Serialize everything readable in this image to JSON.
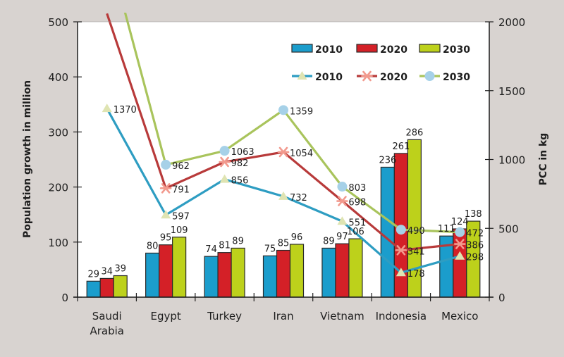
{
  "chart_data": {
    "type": "bar+line",
    "title": "",
    "categories": [
      "Saudi Arabia",
      "Egypt",
      "Turkey",
      "Iran",
      "Vietnam",
      "Indonesia",
      "Mexico"
    ],
    "category_lines": [
      [
        "Saudi",
        "Arabia"
      ],
      [
        "Egypt"
      ],
      [
        "Turkey"
      ],
      [
        "Iran"
      ],
      [
        "Vietnam"
      ],
      [
        "Indonesia"
      ],
      [
        "Mexico"
      ]
    ],
    "ylabel_left": "Population growth in million",
    "ylabel_right": "PCC in kg",
    "ylim_left": [
      0,
      500
    ],
    "ylim_right": [
      0,
      2000
    ],
    "yticks_left": [
      0,
      100,
      200,
      300,
      400,
      500
    ],
    "yticks_right": [
      0,
      500,
      1000,
      1500,
      2000
    ],
    "grid": false,
    "legend_position": "top-right",
    "bar_series": [
      {
        "name": "2010",
        "color": "#1b9dcc",
        "values": [
          29,
          80,
          74,
          75,
          89,
          236,
          111
        ]
      },
      {
        "name": "2020",
        "color": "#d42027",
        "values": [
          34,
          95,
          81,
          85,
          97,
          261,
          124
        ]
      },
      {
        "name": "2030",
        "color": "#bdd11b",
        "values": [
          39,
          109,
          89,
          96,
          106,
          286,
          138
        ]
      }
    ],
    "line_series": [
      {
        "name": "2010",
        "axis": "right",
        "color": "#2e9dc2",
        "marker": "triangle",
        "marker_color": "#dfe4b2",
        "values": [
          1370,
          597,
          856,
          732,
          551,
          178,
          298
        ],
        "labels": [
          "1370",
          "597",
          "856",
          "732",
          "551",
          "178",
          "298"
        ]
      },
      {
        "name": "2020",
        "axis": "right",
        "color": "#b83a3a",
        "marker": "asterisk",
        "marker_color": "#f29a8e",
        "values": [
          2060,
          791,
          982,
          1054,
          698,
          341,
          386
        ],
        "labels": [
          "",
          "791",
          "982",
          "1054",
          "698",
          "341",
          "386"
        ]
      },
      {
        "name": "2030",
        "axis": "right",
        "color": "#a9c45c",
        "marker": "circle",
        "marker_color": "#a6d1e8",
        "values": [
          2560,
          962,
          1063,
          1359,
          803,
          490,
          472
        ],
        "labels": [
          "",
          "962",
          "1063",
          "1359",
          "803",
          "490",
          "472"
        ]
      }
    ]
  }
}
